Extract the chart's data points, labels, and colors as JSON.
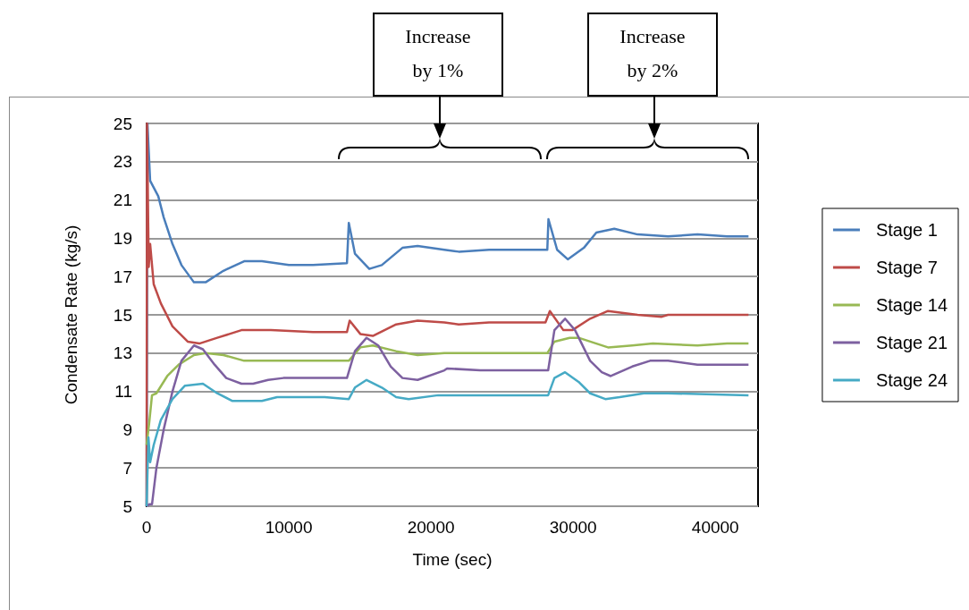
{
  "chart_data": {
    "type": "line",
    "xlabel": "Time (sec)",
    "ylabel": "Condensate Rate (kg/s)",
    "xlim": [
      0,
      43000
    ],
    "xticks": [
      0,
      10000,
      20000,
      30000,
      40000
    ],
    "ylim": [
      5,
      25
    ],
    "yticks": [
      5,
      7,
      9,
      11,
      13,
      15,
      17,
      19,
      21,
      23,
      25
    ],
    "grid": "y",
    "legend": "right",
    "marker": "none",
    "line_style": "solid",
    "annotations": [
      "Increase by 1%",
      "Increase by 2%"
    ],
    "series": [
      {
        "name": "Stage 1",
        "color": "#4a7ebb",
        "x": [
          0,
          60,
          250,
          820,
          1200,
          1820,
          2450,
          3330,
          4150,
          5400,
          6860,
          8110,
          10000,
          11700,
          14090,
          14220,
          14650,
          15660,
          16540,
          17990,
          19060,
          20940,
          21950,
          24090,
          28180,
          28260,
          28870,
          29620,
          30750,
          31630,
          32890,
          34530,
          36670,
          38740,
          40820,
          42330
        ],
        "values": [
          5,
          25,
          22,
          21.2,
          20.1,
          18.7,
          17.6,
          16.7,
          16.7,
          17.3,
          17.8,
          17.8,
          17.6,
          17.6,
          17.7,
          19.8,
          18.2,
          17.4,
          17.6,
          18.5,
          18.6,
          18.4,
          18.3,
          18.4,
          18.4,
          20,
          18.4,
          17.9,
          18.5,
          19.3,
          19.5,
          19.2,
          19.1,
          19.2,
          19.1,
          19.1
        ]
      },
      {
        "name": "Stage 7",
        "color": "#be4b48",
        "x": [
          0,
          30,
          150,
          250,
          500,
          1000,
          1820,
          2890,
          3710,
          4970,
          6670,
          8740,
          11700,
          14090,
          14280,
          15030,
          15910,
          17550,
          19060,
          20940,
          21950,
          24090,
          28050,
          28360,
          29310,
          29940,
          31190,
          32450,
          34530,
          36230,
          36670,
          42330
        ],
        "values": [
          5,
          25,
          17.5,
          18.7,
          16.6,
          15.6,
          14.4,
          13.6,
          13.5,
          13.8,
          14.2,
          14.2,
          14.1,
          14.1,
          14.7,
          14,
          13.9,
          14.5,
          14.7,
          14.6,
          14.5,
          14.6,
          14.6,
          15.2,
          14.2,
          14.2,
          14.8,
          15.2,
          15,
          14.9,
          15,
          15
        ]
      },
      {
        "name": "Stage 14",
        "color": "#98b954",
        "x": [
          0,
          190,
          380,
          690,
          1450,
          2260,
          3330,
          4150,
          5410,
          6860,
          9620,
          14220,
          15030,
          15910,
          17550,
          19060,
          20940,
          24090,
          28180,
          28680,
          29750,
          30380,
          31630,
          32450,
          34150,
          35600,
          38740,
          40820,
          42330
        ],
        "values": [
          8.2,
          9.4,
          10.8,
          10.9,
          11.8,
          12.4,
          12.9,
          13,
          12.9,
          12.6,
          12.6,
          12.6,
          13.3,
          13.4,
          13.1,
          12.9,
          13,
          13,
          13,
          13.6,
          13.8,
          13.8,
          13.5,
          13.3,
          13.4,
          13.5,
          13.4,
          13.5,
          13.5
        ]
      },
      {
        "name": "Stage 21",
        "color": "#7d60a0",
        "x": [
          0,
          190,
          380,
          690,
          1200,
          1820,
          2450,
          3330,
          3960,
          4780,
          5600,
          6670,
          7490,
          8550,
          9620,
          14090,
          14650,
          15470,
          16290,
          17170,
          17990,
          19060,
          20940,
          21130,
          23460,
          28240,
          28680,
          29430,
          30130,
          31190,
          32010,
          32640,
          34150,
          35410,
          36670,
          38740,
          42330
        ],
        "values": [
          5,
          5.1,
          5.1,
          7,
          9,
          11,
          12.6,
          13.4,
          13.2,
          12.4,
          11.7,
          11.4,
          11.4,
          11.6,
          11.7,
          11.7,
          13.1,
          13.8,
          13.4,
          12.3,
          11.7,
          11.6,
          12.1,
          12.2,
          12.1,
          12.1,
          14.2,
          14.8,
          14.2,
          12.6,
          12,
          11.8,
          12.3,
          12.6,
          12.6,
          12.4,
          12.4
        ]
      },
      {
        "name": "Stage 24",
        "color": "#46aac5",
        "x": [
          0,
          130,
          250,
          500,
          1000,
          1820,
          2700,
          3960,
          4970,
          6040,
          8110,
          9180,
          12520,
          14220,
          14650,
          15470,
          16540,
          17550,
          18430,
          20500,
          20940,
          28240,
          28680,
          29430,
          30380,
          31190,
          32260,
          33270,
          34970,
          36670,
          42330
        ],
        "values": [
          5,
          8.6,
          7.3,
          8.2,
          9.5,
          10.6,
          11.3,
          11.4,
          10.9,
          10.5,
          10.5,
          10.7,
          10.7,
          10.6,
          11.2,
          11.6,
          11.2,
          10.7,
          10.6,
          10.8,
          10.8,
          10.8,
          11.7,
          12,
          11.5,
          10.9,
          10.6,
          10.7,
          10.9,
          10.9,
          10.8
        ]
      }
    ]
  }
}
